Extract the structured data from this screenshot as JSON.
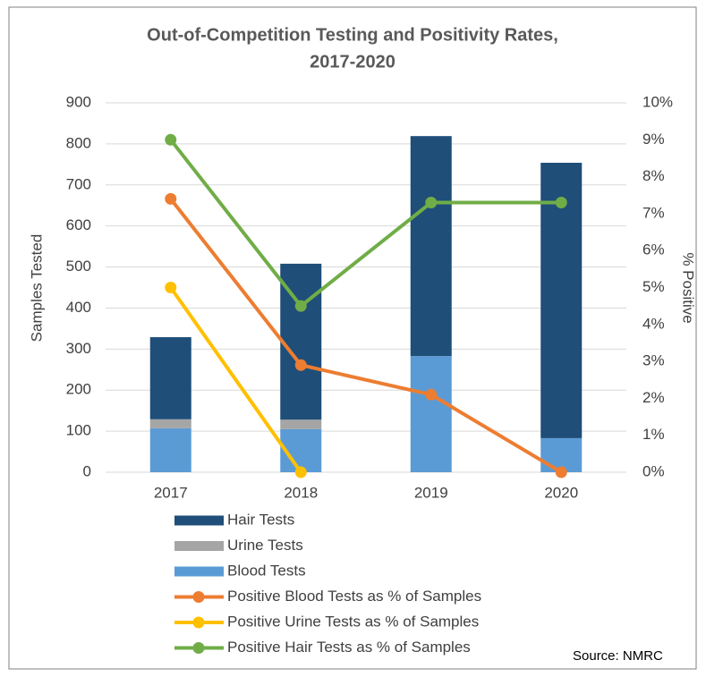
{
  "chart_data": {
    "type": "bar",
    "title": [
      "Out-of-Competition Testing and Positivity Rates,",
      "2017-2020"
    ],
    "y_label": "Samples Tested",
    "y2_label": "% Positive",
    "source": "Source: NMRC",
    "categories": [
      "2017",
      "2018",
      "2019",
      "2020"
    ],
    "ylim": [
      0,
      900
    ],
    "yticks": [
      0,
      100,
      200,
      300,
      400,
      500,
      600,
      700,
      800,
      900
    ],
    "y2lim": [
      0,
      10
    ],
    "y2ticks": [
      {
        "value": 0,
        "label": "0%"
      },
      {
        "value": 1,
        "label": "1%"
      },
      {
        "value": 2,
        "label": "2%"
      },
      {
        "value": 3,
        "label": "3%"
      },
      {
        "value": 4,
        "label": "4%"
      },
      {
        "value": 5,
        "label": "5%"
      },
      {
        "value": 6,
        "label": "6%"
      },
      {
        "value": 7,
        "label": "7%"
      },
      {
        "value": 8,
        "label": "8%"
      },
      {
        "value": 9,
        "label": "9%"
      },
      {
        "value": 10,
        "label": "10%"
      }
    ],
    "grid": true,
    "series": [
      {
        "name": "Hair Tests",
        "type": "bar",
        "color": "#1f4e79",
        "values": [
          200,
          380,
          536,
          671
        ]
      },
      {
        "name": "Urine Tests",
        "type": "bar",
        "color": "#a5a5a5",
        "values": [
          22,
          23,
          0,
          0
        ]
      },
      {
        "name": "Blood Tests",
        "type": "bar",
        "color": "#5b9bd5",
        "values": [
          107,
          105,
          283,
          83
        ]
      },
      {
        "name": "Positive Blood Tests as % of Samples",
        "type": "line",
        "axis": "y2",
        "color": "#ed7d31",
        "values": [
          7.4,
          2.9,
          2.1,
          0
        ]
      },
      {
        "name": "Positive Urine Tests as % of Samples",
        "type": "line",
        "axis": "y2",
        "color": "#ffc000",
        "values": [
          5.0,
          0,
          null,
          null
        ]
      },
      {
        "name": "Positive Hair Tests as % of Samples",
        "type": "line",
        "axis": "y2",
        "color": "#70ad47",
        "values": [
          9.0,
          4.5,
          7.3,
          7.3
        ]
      }
    ]
  }
}
